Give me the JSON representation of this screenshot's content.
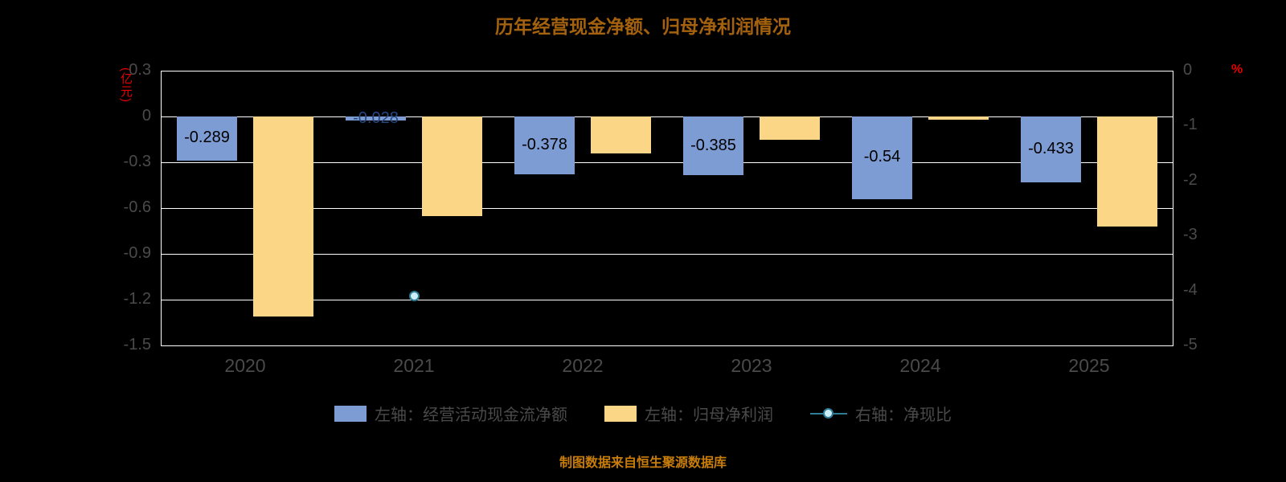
{
  "title": "历年经营现金净额、归母净利润情况",
  "footer": "制图数据来自恒生聚源数据库",
  "left_axis": {
    "unit": "(亿元)",
    "ticks": [
      "0.3",
      "0",
      "-0.3",
      "-0.6",
      "-0.9",
      "-1.2",
      "-1.5"
    ]
  },
  "right_axis": {
    "unit": "%",
    "ticks": [
      "0",
      "-1",
      "-2",
      "-3",
      "-4",
      "-5"
    ]
  },
  "legend": [
    {
      "label": "左轴：经营活动现金流净额",
      "type": "bar",
      "color": "#7d9cd4"
    },
    {
      "label": "左轴：归母净利润",
      "type": "bar",
      "color": "#fbd687"
    },
    {
      "label": "右轴：净现比",
      "type": "line",
      "color": "#2e7d96",
      "marker_fill": "#cdeef7"
    }
  ],
  "colors": {
    "background": "#000000",
    "grid": "#ffffff",
    "axis_text": "#4a4a4a",
    "title": "#a4610e",
    "footer": "#c87d0a",
    "unit_label": "#e60000",
    "bar_label": "#000000",
    "bar_label_small": "#24477f"
  },
  "chart_data": {
    "type": "bar",
    "title": "历年经营现金净额、归母净利润情况",
    "categories": [
      "2020",
      "2021",
      "2022",
      "2023",
      "2024",
      "2025"
    ],
    "series": [
      {
        "name": "左轴：经营活动现金流净额",
        "type": "bar",
        "axis": "left",
        "color": "#7d9cd4",
        "values": [
          -0.289,
          -0.028,
          -0.378,
          -0.385,
          -0.54,
          -0.433
        ],
        "data_labels": [
          "-0.289",
          "-0.028",
          "-0.378",
          "-0.385",
          "-0.54",
          "-0.433"
        ]
      },
      {
        "name": "左轴：归母净利润",
        "type": "bar",
        "axis": "left",
        "color": "#fbd687",
        "values": [
          -1.31,
          -0.65,
          -0.24,
          -0.15,
          -0.02,
          -0.72
        ]
      },
      {
        "name": "右轴：净现比",
        "type": "line",
        "axis": "right",
        "color": "#2e7d96",
        "values": [
          null,
          -4.1,
          null,
          null,
          null,
          null
        ]
      }
    ],
    "left_ylim": [
      -1.5,
      0.3
    ],
    "right_ylim": [
      -5,
      0
    ],
    "grid": true,
    "legend_position": "bottom"
  }
}
